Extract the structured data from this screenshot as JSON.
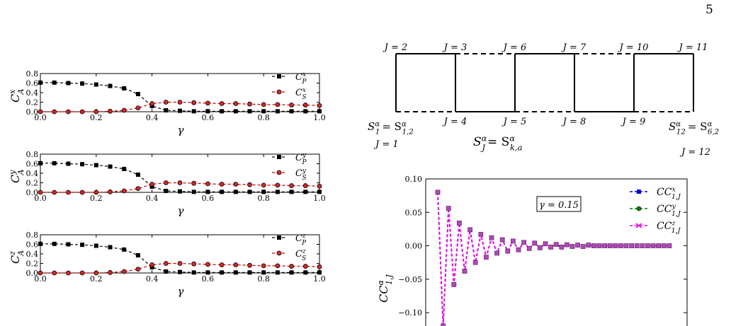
{
  "page_number": "5",
  "colors": {
    "P": "#000000",
    "S_marker": "#d62728",
    "S_line": "#cc0000",
    "grid": "#000000",
    "cx": "#0000cc",
    "cy": "#007f00",
    "cz": "#ee00ee"
  },
  "left_panels": [
    {
      "ylabel": "C",
      "ylabel_sub": "A",
      "ylabel_sup": "x",
      "xlabel": "γ",
      "legend": [
        {
          "base": "C",
          "sub": "P",
          "sup": "x"
        },
        {
          "base": "C",
          "sub": "S",
          "sup": "x"
        }
      ]
    },
    {
      "ylabel": "C",
      "ylabel_sub": "A",
      "ylabel_sup": "y",
      "xlabel": "γ",
      "legend": [
        {
          "base": "C",
          "sub": "P",
          "sup": "y"
        },
        {
          "base": "C",
          "sub": "S",
          "sup": "y"
        }
      ]
    },
    {
      "ylabel": "C",
      "ylabel_sub": "A",
      "ylabel_sup": "z",
      "xlabel": "γ",
      "legend": [
        {
          "base": "C",
          "sub": "P",
          "sup": "z"
        },
        {
          "base": "C",
          "sub": "S",
          "sup": "z"
        }
      ]
    }
  ],
  "diagram": {
    "top_labels": [
      "J = 2",
      "J = 3",
      "J = 6",
      "J = 7",
      "J = 10",
      "J = 11"
    ],
    "bottom_labels": [
      "J = 4",
      "J = 5",
      "J = 8",
      "J = 9"
    ],
    "left_corner": {
      "base": "S",
      "sup": "α",
      "sub": "1",
      "eq": "= S",
      "eq_sup": "α",
      "eq_sub": "1,2",
      "j": "J = 1"
    },
    "right_corner": {
      "base": "S",
      "sup": "α",
      "sub": "12",
      "eq": "= S",
      "eq_sup": "α",
      "eq_sub": "6,2",
      "j": "J = 12"
    },
    "center_formula": {
      "lhs": "S",
      "lhs_sup": "α",
      "lhs_sub": "J",
      "rhs": "= S",
      "rhs_sup": "α",
      "rhs_sub": "k,a"
    }
  },
  "chart_data": [
    {
      "type": "line",
      "panel": "C_A^x",
      "x": [
        0.0,
        0.05,
        0.1,
        0.15,
        0.2,
        0.25,
        0.3,
        0.35,
        0.4,
        0.45,
        0.5,
        0.55,
        0.6,
        0.65,
        0.7,
        0.75,
        0.8,
        0.85,
        0.9,
        0.95,
        1.0
      ],
      "series": [
        {
          "name": "C_P^x",
          "values": [
            0.61,
            0.61,
            0.6,
            0.59,
            0.57,
            0.54,
            0.49,
            0.37,
            0.12,
            0.03,
            0.02,
            0.01,
            0.01,
            0.01,
            0.01,
            0.01,
            0.01,
            0.01,
            0.01,
            0.01,
            0.01
          ]
        },
        {
          "name": "C_S^x",
          "values": [
            0.0,
            0.0,
            0.0,
            0.0,
            0.0,
            0.01,
            0.03,
            0.08,
            0.17,
            0.2,
            0.2,
            0.19,
            0.18,
            0.17,
            0.17,
            0.16,
            0.15,
            0.15,
            0.14,
            0.14,
            0.13
          ]
        }
      ],
      "xlim": [
        0.0,
        1.0
      ],
      "ylim": [
        0.0,
        0.8
      ],
      "xticks": [
        "0.0",
        "0.2",
        "0.4",
        "0.6",
        "0.8",
        "1.0"
      ],
      "yticks": [
        "0.0",
        "0.2",
        "0.4",
        "0.6",
        "0.8"
      ]
    },
    {
      "type": "line",
      "panel": "C_A^y",
      "x": [
        0.0,
        0.05,
        0.1,
        0.15,
        0.2,
        0.25,
        0.3,
        0.35,
        0.4,
        0.45,
        0.5,
        0.55,
        0.6,
        0.65,
        0.7,
        0.75,
        0.8,
        0.85,
        0.9,
        0.95,
        1.0
      ],
      "series": [
        {
          "name": "C_P^y",
          "values": [
            0.61,
            0.61,
            0.6,
            0.59,
            0.57,
            0.54,
            0.49,
            0.37,
            0.12,
            0.03,
            0.02,
            0.01,
            0.01,
            0.01,
            0.01,
            0.01,
            0.01,
            0.01,
            0.01,
            0.01,
            0.01
          ]
        },
        {
          "name": "C_S^y",
          "values": [
            0.0,
            0.0,
            0.0,
            0.0,
            0.0,
            0.01,
            0.03,
            0.08,
            0.17,
            0.2,
            0.2,
            0.19,
            0.18,
            0.17,
            0.17,
            0.16,
            0.15,
            0.15,
            0.14,
            0.14,
            0.13
          ]
        }
      ],
      "xlim": [
        0.0,
        1.0
      ],
      "ylim": [
        0.0,
        0.8
      ],
      "xticks": [
        "0.0",
        "0.2",
        "0.4",
        "0.6",
        "0.8",
        "1.0"
      ],
      "yticks": [
        "0.0",
        "0.2",
        "0.4",
        "0.6",
        "0.8"
      ]
    },
    {
      "type": "line",
      "panel": "C_A^z",
      "x": [
        0.0,
        0.05,
        0.1,
        0.15,
        0.2,
        0.25,
        0.3,
        0.35,
        0.4,
        0.45,
        0.5,
        0.55,
        0.6,
        0.65,
        0.7,
        0.75,
        0.8,
        0.85,
        0.9,
        0.95,
        1.0
      ],
      "series": [
        {
          "name": "C_P^z",
          "values": [
            0.61,
            0.61,
            0.6,
            0.59,
            0.57,
            0.54,
            0.49,
            0.37,
            0.12,
            0.03,
            0.02,
            0.01,
            0.01,
            0.01,
            0.01,
            0.01,
            0.01,
            0.01,
            0.01,
            0.01,
            0.01
          ]
        },
        {
          "name": "C_S^z",
          "values": [
            0.0,
            0.0,
            0.0,
            0.0,
            0.0,
            0.01,
            0.03,
            0.08,
            0.17,
            0.2,
            0.2,
            0.19,
            0.18,
            0.17,
            0.17,
            0.16,
            0.15,
            0.15,
            0.14,
            0.14,
            0.13
          ]
        }
      ],
      "xlim": [
        0.0,
        1.0
      ],
      "ylim": [
        0.0,
        0.8
      ],
      "xticks": [
        "0.0",
        "0.2",
        "0.4",
        "0.6",
        "0.8",
        "1.0"
      ],
      "yticks": [
        "0.0",
        "0.2",
        "0.4",
        "0.6",
        "0.8"
      ]
    },
    {
      "type": "line",
      "panel": "CC_1J",
      "annotation": "γ = 0.15",
      "ylabel": "CC",
      "ylabel_sup": "α",
      "ylabel_sub": "1,J",
      "ylim": [
        -0.12,
        0.1
      ],
      "yticks": [
        "0.10",
        "0.05",
        "0.00",
        "−0.05",
        "−0.10"
      ],
      "ytick_values": [
        0.1,
        0.05,
        0.0,
        -0.05,
        -0.1
      ],
      "x": [
        1,
        2,
        3,
        4,
        5,
        6,
        7,
        8,
        9,
        10,
        11,
        12,
        13,
        14,
        15,
        16,
        17,
        18,
        19,
        20,
        21,
        22,
        23,
        24,
        25,
        26,
        27,
        28,
        29,
        30,
        31,
        32,
        33,
        34,
        35,
        36,
        37,
        38,
        39,
        40,
        41,
        42,
        43,
        44
      ],
      "legend": [
        {
          "base": "CC",
          "sup": "x",
          "sub": "1,J"
        },
        {
          "base": "CC",
          "sup": "y",
          "sub": "1,J"
        },
        {
          "base": "CC",
          "sup": "z",
          "sub": "1,J"
        }
      ],
      "values": [
        0.08,
        -0.12,
        0.056,
        -0.058,
        0.034,
        -0.038,
        0.024,
        -0.025,
        0.017,
        -0.017,
        0.012,
        -0.011,
        0.009,
        -0.008,
        0.007,
        -0.006,
        0.005,
        -0.004,
        0.004,
        -0.003,
        0.003,
        -0.002,
        0.002,
        -0.002,
        0.0015,
        -0.001,
        0.001,
        -0.001,
        0.001,
        0.0,
        0.0,
        0.0,
        0.0,
        0.0,
        0.0,
        0.0,
        0.0,
        0.0,
        0.0,
        0.0,
        0.0,
        0.0,
        0.0,
        0.0
      ]
    }
  ]
}
